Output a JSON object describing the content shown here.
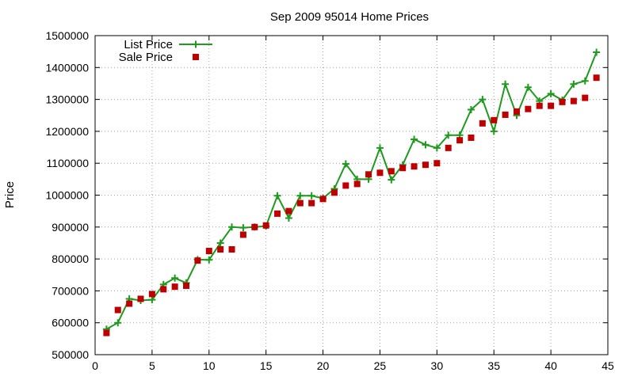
{
  "chart_data": {
    "type": "line",
    "title": "Sep 2009 95014 Home Prices",
    "xlabel": "",
    "ylabel": "Price",
    "xlim": [
      0,
      45
    ],
    "ylim": [
      500000,
      1500000
    ],
    "x_ticks": [
      0,
      5,
      10,
      15,
      20,
      25,
      30,
      35,
      40,
      45
    ],
    "y_ticks": [
      500000,
      600000,
      700000,
      800000,
      900000,
      1000000,
      1100000,
      1200000,
      1300000,
      1400000,
      1500000
    ],
    "grid": true,
    "legend_position": "top-left",
    "series": [
      {
        "name": "List Price",
        "kind": "line-with-plus-markers",
        "color": "#1e9a1e",
        "x": [
          1,
          2,
          3,
          4,
          5,
          6,
          7,
          8,
          9,
          10,
          11,
          12,
          13,
          14,
          15,
          16,
          17,
          18,
          19,
          20,
          21,
          22,
          23,
          24,
          25,
          26,
          27,
          28,
          29,
          30,
          31,
          32,
          33,
          34,
          35,
          36,
          37,
          38,
          39,
          40,
          41,
          42,
          43,
          44
        ],
        "y": [
          580000,
          600000,
          675000,
          670000,
          672000,
          720000,
          740000,
          725000,
          798000,
          797000,
          850000,
          900000,
          898000,
          900000,
          903000,
          998000,
          928000,
          998000,
          998000,
          990000,
          1020000,
          1098000,
          1050000,
          1050000,
          1148000,
          1048000,
          1095000,
          1175000,
          1158000,
          1148000,
          1188000,
          1188000,
          1268000,
          1300000,
          1200000,
          1348000,
          1250000,
          1338000,
          1295000,
          1318000,
          1298000,
          1348000,
          1358000,
          1448000
        ]
      },
      {
        "name": "Sale Price",
        "kind": "square-markers",
        "color": "#c00000",
        "x": [
          1,
          2,
          3,
          4,
          5,
          6,
          7,
          8,
          9,
          10,
          11,
          12,
          13,
          14,
          15,
          16,
          17,
          18,
          19,
          20,
          21,
          22,
          23,
          24,
          25,
          26,
          27,
          28,
          29,
          30,
          31,
          32,
          33,
          34,
          35,
          36,
          37,
          38,
          39,
          40,
          41,
          42,
          43,
          44
        ],
        "y": [
          568000,
          640000,
          660000,
          675000,
          690000,
          705000,
          713000,
          716000,
          795000,
          825000,
          830000,
          830000,
          876000,
          900000,
          905000,
          942000,
          950000,
          975000,
          975000,
          988000,
          1008000,
          1030000,
          1035000,
          1065000,
          1070000,
          1075000,
          1085000,
          1090000,
          1095000,
          1100000,
          1148000,
          1172000,
          1180000,
          1225000,
          1235000,
          1252000,
          1262000,
          1270000,
          1280000,
          1280000,
          1292000,
          1295000,
          1305000,
          1368000
        ]
      }
    ]
  }
}
